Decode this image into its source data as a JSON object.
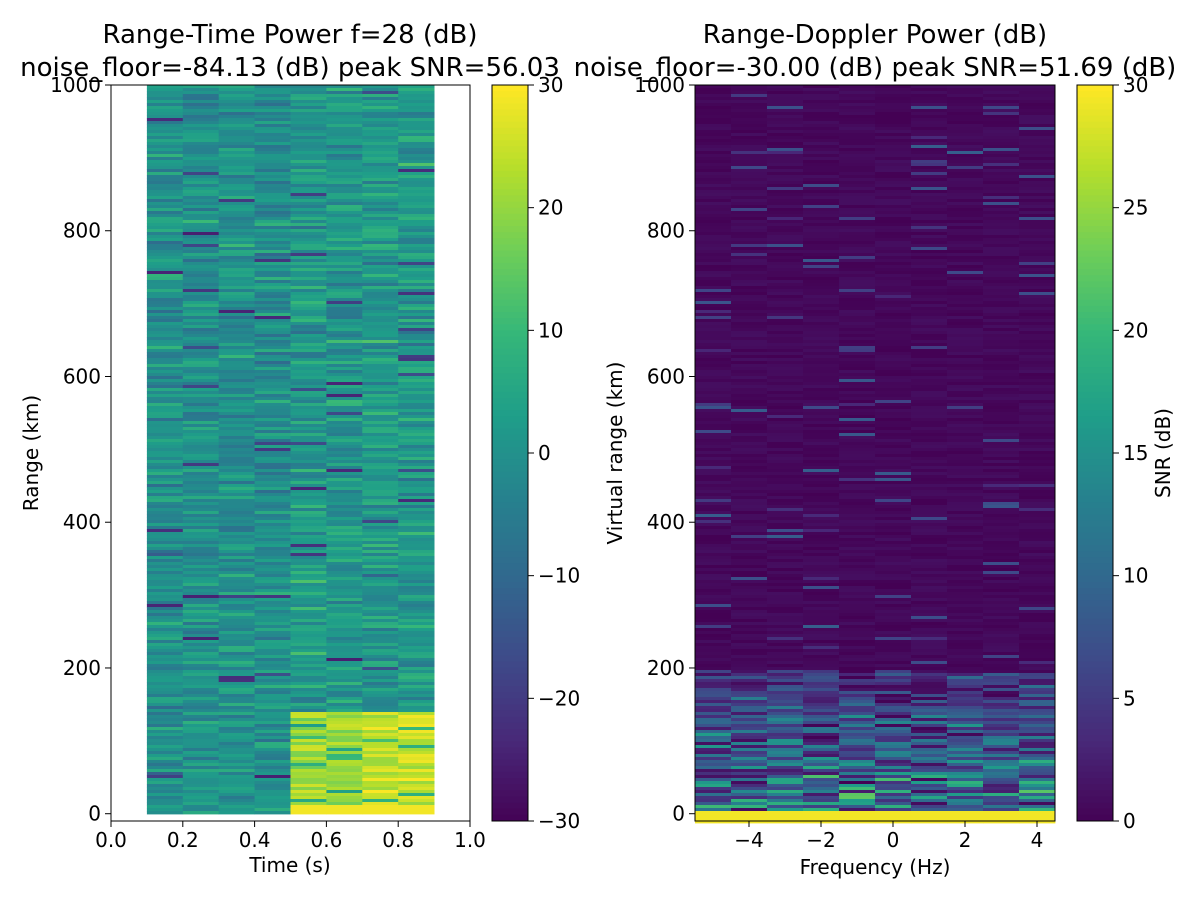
{
  "chart_data": [
    {
      "type": "heatmap",
      "title": "Range-Time Power f=28 (dB)",
      "subtitle": "noise_floor=-84.13 (dB) peak SNR=56.03",
      "xlabel": "Time (s)",
      "ylabel": "Range (km)",
      "xlim": [
        0.0,
        1.0
      ],
      "ylim": [
        -10,
        1000
      ],
      "xticks": [
        "0.0",
        "0.2",
        "0.4",
        "0.6",
        "0.8",
        "1.0"
      ],
      "yticks": [
        "0",
        "200",
        "400",
        "600",
        "800",
        "1000"
      ],
      "colormap": "viridis",
      "colorbar": {
        "label": "",
        "range": [
          -30,
          30
        ],
        "ticks": [
          "30",
          "20",
          "10",
          "0",
          "−10",
          "−20",
          "−30"
        ]
      },
      "time_columns": [
        0.1,
        0.2,
        0.3,
        0.4,
        0.5,
        0.6,
        0.7,
        0.8,
        0.9
      ],
      "column_base_level_db": [
        0,
        0,
        0,
        0,
        2,
        2,
        2,
        2
      ],
      "near_range_level_db": [
        0,
        0,
        0,
        0,
        22,
        22,
        26,
        26
      ],
      "near_range_extent_km": 140
    },
    {
      "type": "heatmap",
      "title": "Range-Doppler Power (dB)",
      "subtitle": "noise_floor=-30.00 (dB) peak SNR=51.69 (dB)",
      "xlabel": "Frequency (Hz)",
      "ylabel": "Virtual range (km)",
      "xlim": [
        -5.5,
        4.5
      ],
      "ylim": [
        -10,
        1000
      ],
      "xticks": [
        "−4",
        "−2",
        "0",
        "2",
        "4"
      ],
      "yticks": [
        "0",
        "200",
        "400",
        "600",
        "800",
        "1000"
      ],
      "colormap": "viridis",
      "colorbar": {
        "label": "SNR (dB)",
        "range": [
          0,
          30
        ],
        "ticks": [
          "30",
          "25",
          "20",
          "15",
          "10",
          "5",
          "0"
        ]
      },
      "frequency_columns": [
        -5.5,
        -4.5,
        -3.5,
        -2.5,
        -1.5,
        -0.5,
        0.5,
        1.5,
        2.5,
        3.5,
        4.5
      ],
      "near_range_extent_km": 200,
      "strong_return_range_km": 5
    }
  ]
}
